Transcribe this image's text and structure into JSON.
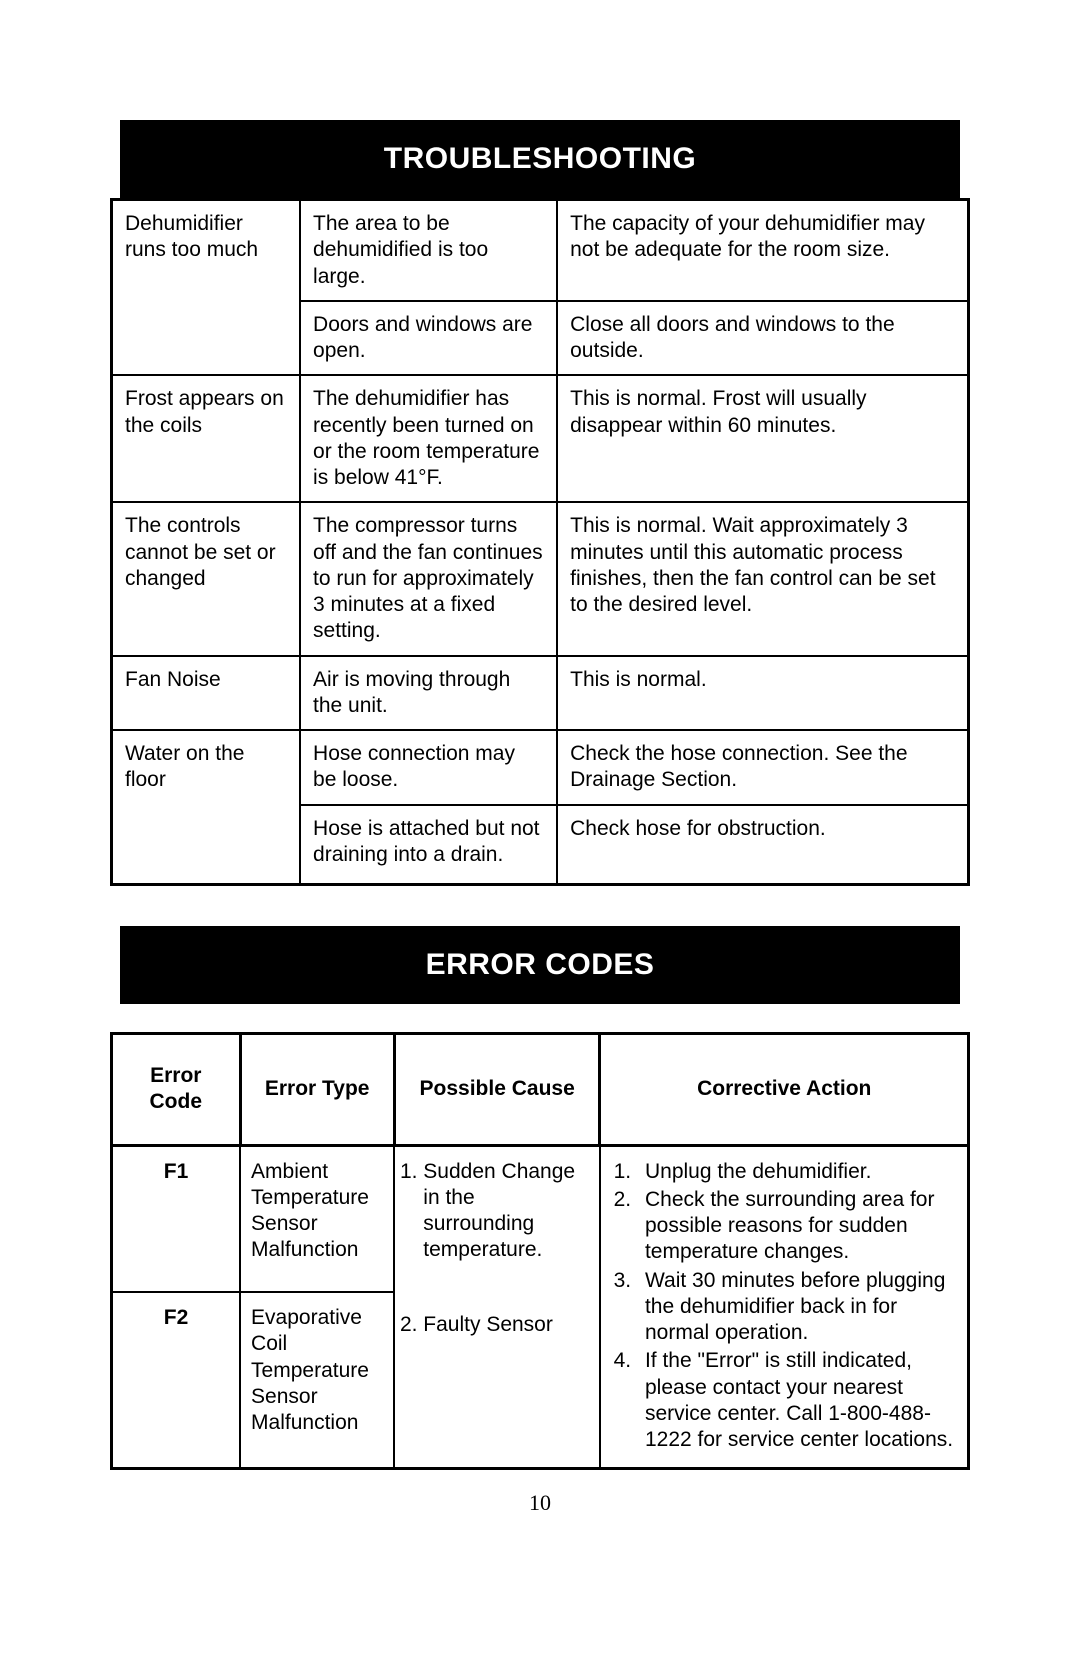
{
  "page_number": "10",
  "section1": {
    "title": "TROUBLESHOOTING",
    "rows": [
      {
        "problem": "Dehumidifier runs too much",
        "cause": "The area to be dehumidified is too large.",
        "solution": "The capacity of your dehumidifier may not be adequate for the room size."
      },
      {
        "problem": "",
        "cause": "Doors and windows are open.",
        "solution": "Close all doors and windows to the outside."
      },
      {
        "problem": "Frost appears on the coils",
        "cause": "The dehumidifier has recently been turned on or the room temperature is below 41°F.",
        "solution": "This is normal. Frost will usually disappear within 60 minutes."
      },
      {
        "problem": "The controls cannot be set or changed",
        "cause": "The compressor turns off and the fan continues to run for approximately 3 minutes at a fixed setting.",
        "solution": "This is normal. Wait approximately 3 minutes until this automatic process finishes, then the fan control can be set to the desired level."
      },
      {
        "problem": "Fan Noise",
        "cause": "Air is moving through the unit.",
        "solution": "This is normal."
      },
      {
        "problem": "Water on the floor",
        "cause": "Hose connection may be loose.",
        "solution": "Check the hose connection. See the Drainage Section."
      },
      {
        "problem": "",
        "cause": "Hose is attached but not draining into a drain.",
        "solution": "Check hose for obstruction."
      }
    ]
  },
  "section2": {
    "title": "ERROR CODES",
    "headers": {
      "code": "Error Code",
      "type": "Error Type",
      "cause": "Possible Cause",
      "action": "Corrective Action"
    },
    "row1": {
      "code": "F1",
      "type": "Ambient Temperature Sensor Malfunction"
    },
    "row2": {
      "code": "F2",
      "type": "Evaporative Coil Temperature Sensor Malfunction"
    },
    "causes": [
      "Sudden Change in the surrounding temperature.",
      "Faulty Sensor"
    ],
    "actions": [
      "Unplug the dehumidifier.",
      "Check the surrounding area for possible reasons for sudden temperature changes.",
      "Wait 30 minutes before plugging the dehumidifier back in for normal operation.",
      "If the \"Error\" is still indicated, please contact your nearest service center. Call 1-800-488-1222 for service center locations."
    ]
  },
  "style": {
    "header_bg": "#000000",
    "header_fg": "#ffffff",
    "border_color": "#000000",
    "body_fontsize": 21,
    "header_fontsize": 30,
    "page_bg": "#ffffff"
  }
}
